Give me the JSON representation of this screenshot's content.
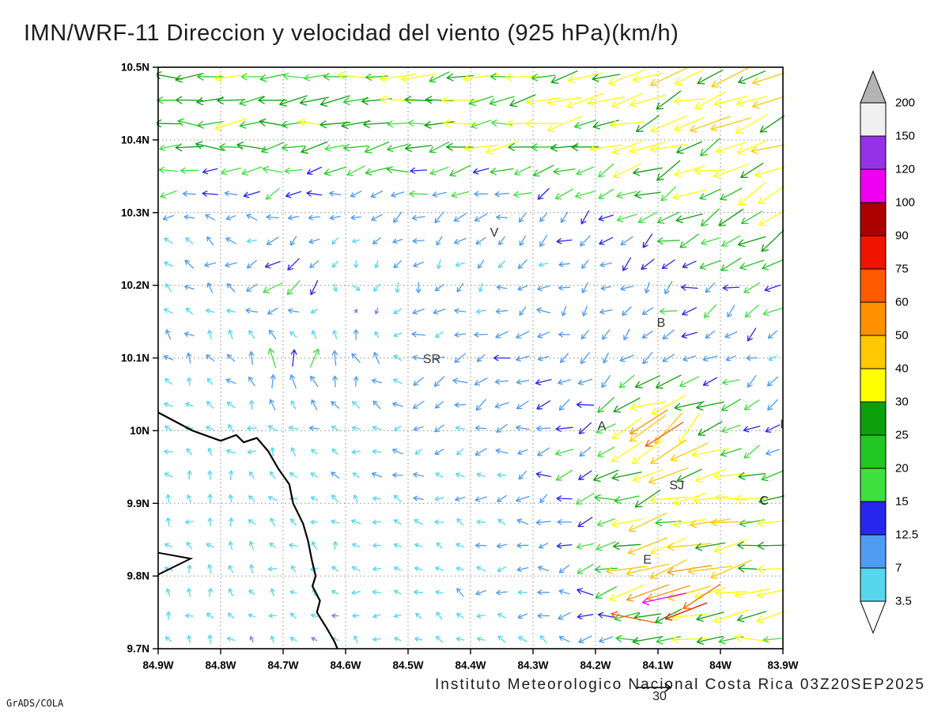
{
  "title": "IMN/WRF-11 Direccion y velocidad del viento (925 hPa)(km/h)",
  "footer": {
    "attribution": "Instituto Meteorologico Nacional Costa Rica 03Z20SEP2025",
    "credit": "GrADS/COLA",
    "ref_vector_label": "30"
  },
  "chart_data": {
    "type": "vector_field",
    "title": "IMN/WRF-11 Direccion y velocidad del viento (925 hPa)(km/h)",
    "units": "km/h",
    "level": "925 hPa",
    "valid_time": "03Z20SEP2025",
    "grid": "dotted",
    "xlim": [
      -84.9,
      -83.9
    ],
    "ylim": [
      9.7,
      10.5
    ],
    "x_ticks": {
      "labels": [
        "84.9W",
        "84.8W",
        "84.7W",
        "84.6W",
        "84.5W",
        "84.4W",
        "84.3W",
        "84.2W",
        "84.1W",
        "84W",
        "83.9W"
      ],
      "values": [
        -84.9,
        -84.8,
        -84.7,
        -84.6,
        -84.5,
        -84.4,
        -84.3,
        -84.2,
        -84.1,
        -84.0,
        -83.9
      ]
    },
    "y_ticks": {
      "labels": [
        "10.5N",
        "10.4N",
        "10.3N",
        "10.2N",
        "10.1N",
        "10N",
        "9.9N",
        "9.8N",
        "9.7N"
      ],
      "values": [
        10.5,
        10.4,
        10.3,
        10.2,
        10.1,
        10.0,
        9.9,
        9.8,
        9.7
      ]
    },
    "reference_vector_kmh": 30,
    "colorbar": {
      "levels": [
        3.5,
        7,
        12.5,
        15,
        20,
        25,
        30,
        40,
        50,
        60,
        75,
        90,
        100,
        120,
        150,
        200
      ],
      "labels": [
        "3.5",
        "7",
        "12.5",
        "15",
        "20",
        "25",
        "30",
        "40",
        "50",
        "60",
        "75",
        "90",
        "100",
        "120",
        "150",
        "200"
      ],
      "band_colors": [
        "#55d7ee",
        "#4e9bf2",
        "#2626ee",
        "#3ee03e",
        "#21c821",
        "#0ca00c",
        "#ffff00",
        "#ffc800",
        "#ff9100",
        "#ff5a00",
        "#f01400",
        "#aa0000",
        "#f000f0",
        "#9632e6",
        "#f0f0f0"
      ],
      "under_color": "#ffffff",
      "over_color": "#b4b4b4",
      "calm_arrow_color": "#9e6fe3"
    },
    "stations": [
      {
        "label": "V",
        "lon": -84.362,
        "lat": 10.272
      },
      {
        "label": "B",
        "lon": -84.095,
        "lat": 10.148
      },
      {
        "label": "SR",
        "lon": -84.462,
        "lat": 10.098
      },
      {
        "label": "A",
        "lon": -84.19,
        "lat": 10.006
      },
      {
        "label": "I",
        "lon": -83.902,
        "lat": 10.008
      },
      {
        "label": "SJ",
        "lon": -84.07,
        "lat": 9.924
      },
      {
        "label": "C",
        "lon": -83.93,
        "lat": 9.903
      },
      {
        "label": "E",
        "lon": -84.117,
        "lat": 9.822
      }
    ],
    "wind_grid": {
      "lons": [
        -84.9,
        -84.8,
        -84.7,
        -84.6,
        -84.5,
        -84.4,
        -84.3,
        -84.2,
        -84.1,
        -84.0,
        -83.9
      ],
      "lats": [
        10.5,
        10.4,
        10.3,
        10.2,
        10.1,
        10.0,
        9.9,
        9.8,
        9.7
      ],
      "u": [
        [
          -26,
          -27,
          -28,
          -28,
          -29,
          -30,
          -30,
          -30,
          -31,
          -33,
          -35
        ],
        [
          -22,
          -24,
          -25,
          -25,
          -26,
          -27,
          -27,
          -28,
          -29,
          -31,
          -33
        ],
        [
          -8,
          -9,
          -6,
          -6,
          -8,
          -10,
          -8,
          -12,
          -18,
          -24,
          -28
        ],
        [
          -5,
          -6,
          -16,
          4,
          -5,
          -6,
          -7,
          -6,
          -10,
          -12,
          -16
        ],
        [
          -4,
          -5,
          2,
          -2,
          -9,
          -10,
          -12,
          -8,
          -12,
          -8,
          -7
        ],
        [
          -3,
          -4,
          -5,
          -6,
          -7,
          -8,
          -10,
          -14,
          -44,
          -22,
          -8
        ],
        [
          -3,
          -3,
          -4,
          -5,
          -6,
          -7,
          -9,
          -18,
          -28,
          -32,
          -26
        ],
        [
          -3,
          -3,
          -3,
          -4,
          -5,
          -6,
          -8,
          -14,
          -52,
          -36,
          -26
        ],
        [
          -3,
          -3,
          -3,
          -3,
          -4,
          -5,
          -6,
          -10,
          -22,
          -26,
          -24
        ]
      ],
      "v": [
        [
          -2,
          -2,
          -3,
          -3,
          -3,
          -4,
          -5,
          -7,
          -10,
          -12,
          -14
        ],
        [
          0,
          -2,
          -2,
          -2,
          -3,
          -3,
          -4,
          -7,
          -10,
          -13,
          -15
        ],
        [
          2,
          1,
          -3,
          -4,
          -4,
          -6,
          -5,
          -6,
          -10,
          -13,
          -15
        ],
        [
          4,
          5,
          -14,
          -6,
          -6,
          -4,
          -4,
          -5,
          -6,
          -8,
          -8
        ],
        [
          5,
          4,
          16,
          14,
          -3,
          -2,
          -3,
          -5,
          -8,
          -5,
          -3
        ],
        [
          4,
          4,
          3,
          2,
          -2,
          -3,
          -4,
          -6,
          -28,
          -12,
          -4
        ],
        [
          5,
          4,
          4,
          3,
          2,
          1,
          -2,
          -5,
          -8,
          -6,
          -5
        ],
        [
          4,
          4,
          3,
          3,
          2,
          2,
          1,
          -3,
          -15,
          -8,
          -5
        ],
        [
          4,
          3,
          3,
          2,
          2,
          2,
          2,
          0,
          -4,
          -4,
          -3
        ]
      ]
    },
    "notable_arrows": [
      {
        "lon": -84.09,
        "lat": 9.77,
        "u": -100,
        "v": -22
      },
      {
        "lon": -84.055,
        "lat": 9.752,
        "u": -72,
        "v": -28
      },
      {
        "lon": -84.03,
        "lat": 9.772,
        "u": -52,
        "v": -34
      },
      {
        "lon": -84.115,
        "lat": 10.012,
        "u": -50,
        "v": -32
      },
      {
        "lon": -84.09,
        "lat": 9.995,
        "u": -56,
        "v": -36
      },
      {
        "lon": -84.14,
        "lat": 9.742,
        "u": -60,
        "v": 12
      }
    ],
    "coastline": [
      [
        -84.9,
        10.025
      ],
      [
        -84.845,
        10.0
      ],
      [
        -84.8,
        9.986
      ],
      [
        -84.775,
        9.994
      ],
      [
        -84.763,
        9.984
      ],
      [
        -84.742,
        9.99
      ],
      [
        -84.724,
        9.972
      ],
      [
        -84.708,
        9.948
      ],
      [
        -84.69,
        9.926
      ],
      [
        -84.684,
        9.9
      ],
      [
        -84.668,
        9.872
      ],
      [
        -84.66,
        9.848
      ],
      [
        -84.654,
        9.822
      ],
      [
        -84.648,
        9.8
      ],
      [
        -84.653,
        9.786
      ],
      [
        -84.641,
        9.766
      ],
      [
        -84.646,
        9.75
      ],
      [
        -84.63,
        9.728
      ],
      [
        -84.618,
        9.71
      ],
      [
        -84.613,
        9.7
      ]
    ],
    "islet": [
      [
        -84.9,
        9.832
      ],
      [
        -84.848,
        9.824
      ],
      [
        -84.9,
        9.802
      ]
    ]
  }
}
